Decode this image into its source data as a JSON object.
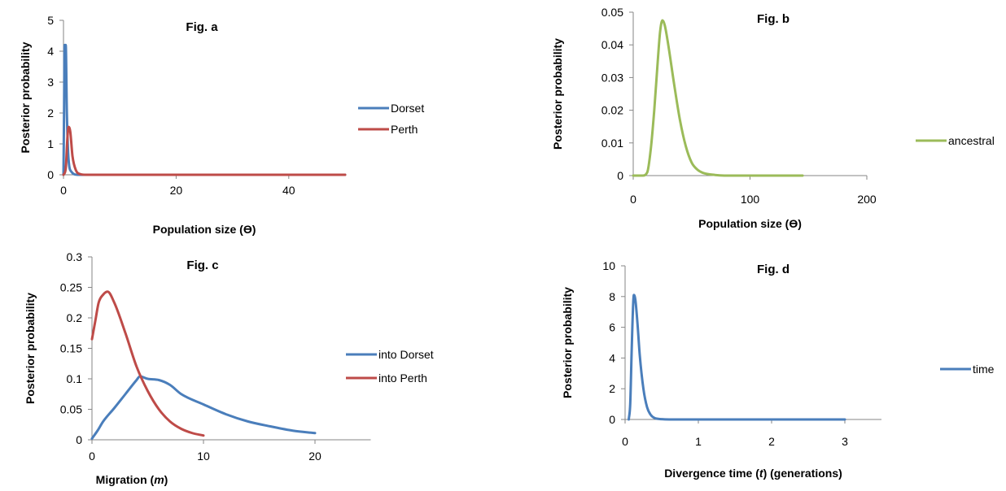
{
  "chart_data": [
    {
      "id": "a",
      "type": "line",
      "title": "Fig. a",
      "xlabel": "Population size (ϴ)",
      "ylabel": "Posterior probability",
      "xlim": [
        0,
        50
      ],
      "ylim": [
        0,
        5
      ],
      "xticks": [
        0,
        20,
        40
      ],
      "yticks": [
        0,
        1,
        2,
        3,
        4,
        5
      ],
      "grid": false,
      "legend": "right",
      "series": [
        {
          "name": "Dorset",
          "color": "#4a7ebb",
          "points": [
            [
              0,
              0
            ],
            [
              0.1,
              2.0
            ],
            [
              0.2,
              4.2
            ],
            [
              0.4,
              4.2
            ],
            [
              0.6,
              2.0
            ],
            [
              0.9,
              0.5
            ],
            [
              1.4,
              0.1
            ],
            [
              2.5,
              0
            ],
            [
              50,
              0
            ]
          ]
        },
        {
          "name": "Perth",
          "color": "#be4b48",
          "points": [
            [
              0,
              0
            ],
            [
              0.4,
              0.2
            ],
            [
              0.7,
              1.2
            ],
            [
              0.9,
              1.55
            ],
            [
              1.2,
              1.4
            ],
            [
              1.6,
              0.6
            ],
            [
              2.2,
              0.15
            ],
            [
              3,
              0.02
            ],
            [
              4,
              0
            ],
            [
              50,
              0
            ]
          ]
        }
      ]
    },
    {
      "id": "b",
      "type": "line",
      "title": "Fig. b",
      "xlabel": "Population size (ϴ)",
      "ylabel": "Posterior probability",
      "xlim": [
        0,
        200
      ],
      "ylim": [
        0,
        0.05
      ],
      "xticks": [
        0,
        100,
        200
      ],
      "yticks": [
        0,
        0.01,
        0.02,
        0.03,
        0.04,
        0.05
      ],
      "grid": false,
      "legend": "right",
      "series": [
        {
          "name": "ancestral",
          "color": "#9bbb59",
          "points": [
            [
              0,
              0
            ],
            [
              8,
              0
            ],
            [
              12,
              0.001
            ],
            [
              15,
              0.008
            ],
            [
              18,
              0.02
            ],
            [
              21,
              0.035
            ],
            [
              23,
              0.044
            ],
            [
              25,
              0.0475
            ],
            [
              27,
              0.046
            ],
            [
              30,
              0.04
            ],
            [
              35,
              0.028
            ],
            [
              40,
              0.017
            ],
            [
              45,
              0.009
            ],
            [
              50,
              0.004
            ],
            [
              55,
              0.0018
            ],
            [
              60,
              0.0008
            ],
            [
              70,
              0.0002
            ],
            [
              80,
              0
            ],
            [
              145,
              0
            ]
          ]
        }
      ]
    },
    {
      "id": "c",
      "type": "line",
      "title": "Fig. c",
      "xlabel": "Migration (m)",
      "ylabel": "Posterior probability",
      "xlim": [
        0,
        25
      ],
      "ylim": [
        0,
        0.3
      ],
      "xticks": [
        0,
        10,
        20
      ],
      "yticks": [
        0,
        0.05,
        0.1,
        0.15,
        0.2,
        0.25,
        0.3
      ],
      "grid": false,
      "legend": "right",
      "series": [
        {
          "name": "into Dorset",
          "color": "#4a7ebb",
          "points": [
            [
              0,
              0.002
            ],
            [
              0.5,
              0.015
            ],
            [
              1,
              0.03
            ],
            [
              2,
              0.052
            ],
            [
              3,
              0.075
            ],
            [
              4,
              0.098
            ],
            [
              4.3,
              0.104
            ],
            [
              5,
              0.1
            ],
            [
              6,
              0.098
            ],
            [
              7,
              0.09
            ],
            [
              8,
              0.075
            ],
            [
              10,
              0.058
            ],
            [
              12,
              0.042
            ],
            [
              14,
              0.03
            ],
            [
              16,
              0.022
            ],
            [
              18,
              0.015
            ],
            [
              20,
              0.011
            ]
          ]
        },
        {
          "name": "into Perth",
          "color": "#be4b48",
          "points": [
            [
              0,
              0.165
            ],
            [
              0.3,
              0.195
            ],
            [
              0.6,
              0.225
            ],
            [
              1,
              0.238
            ],
            [
              1.4,
              0.243
            ],
            [
              2,
              0.225
            ],
            [
              3,
              0.175
            ],
            [
              4,
              0.12
            ],
            [
              5,
              0.08
            ],
            [
              6,
              0.05
            ],
            [
              7,
              0.03
            ],
            [
              8,
              0.018
            ],
            [
              9,
              0.011
            ],
            [
              10,
              0.007
            ]
          ]
        }
      ]
    },
    {
      "id": "d",
      "type": "line",
      "title": "Fig. d",
      "xlabel": "Divergence time (t) (generations)",
      "ylabel": "Posterior probability",
      "xlim": [
        0,
        3.5
      ],
      "ylim": [
        0,
        10
      ],
      "xticks": [
        0,
        1,
        2,
        3
      ],
      "yticks": [
        0,
        2,
        4,
        6,
        8,
        10
      ],
      "grid": false,
      "legend": "right",
      "series": [
        {
          "name": "time",
          "color": "#4a7ebb",
          "points": [
            [
              0.05,
              0
            ],
            [
              0.07,
              1
            ],
            [
              0.09,
              4.5
            ],
            [
              0.11,
              7.5
            ],
            [
              0.12,
              8.1
            ],
            [
              0.14,
              7.8
            ],
            [
              0.17,
              6.2
            ],
            [
              0.2,
              4.2
            ],
            [
              0.25,
              2.0
            ],
            [
              0.3,
              0.8
            ],
            [
              0.35,
              0.3
            ],
            [
              0.4,
              0.1
            ],
            [
              0.5,
              0.02
            ],
            [
              0.6,
              0
            ],
            [
              3,
              0
            ]
          ]
        }
      ]
    }
  ]
}
